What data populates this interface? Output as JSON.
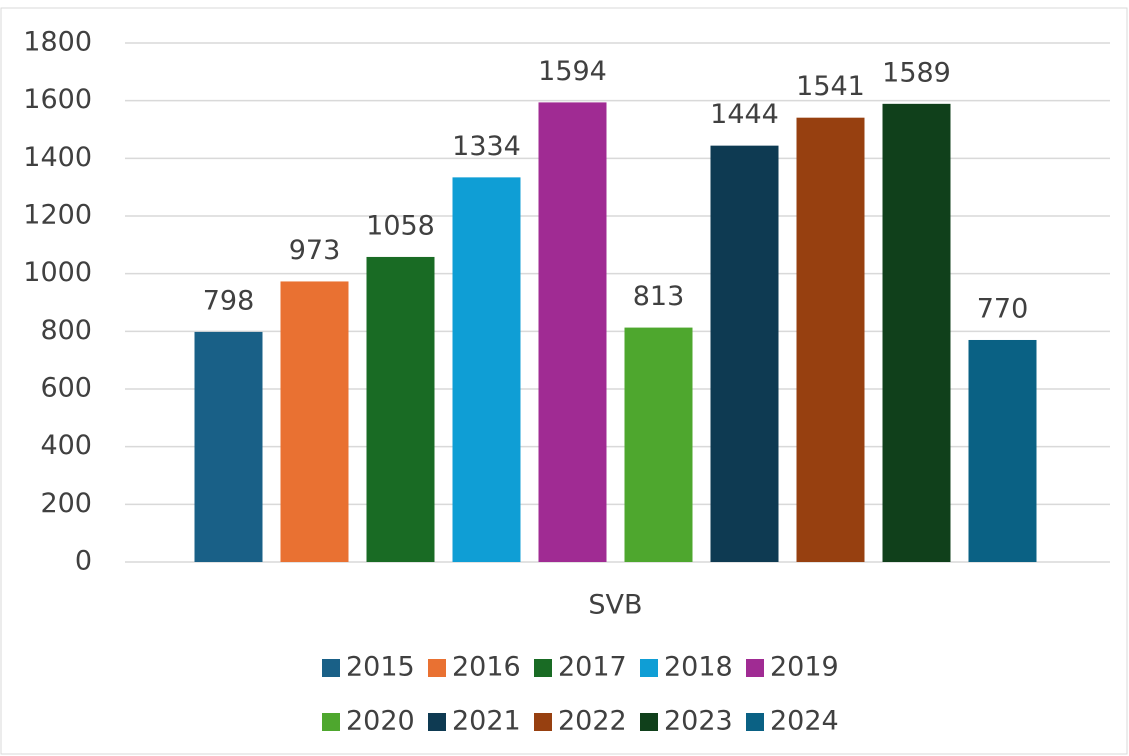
{
  "chart_data": {
    "type": "bar",
    "categories": [
      "SVB"
    ],
    "series": [
      {
        "name": "2015",
        "color": "#196087",
        "values": [
          798
        ]
      },
      {
        "name": "2016",
        "color": "#e97132",
        "values": [
          973
        ]
      },
      {
        "name": "2017",
        "color": "#196b24",
        "values": [
          1058
        ]
      },
      {
        "name": "2018",
        "color": "#0f9ed5",
        "values": [
          1334
        ]
      },
      {
        "name": "2019",
        "color": "#a02b93",
        "values": [
          1594
        ]
      },
      {
        "name": "2020",
        "color": "#4ea72e",
        "values": [
          813
        ]
      },
      {
        "name": "2021",
        "color": "#0e3a52",
        "values": [
          1444
        ]
      },
      {
        "name": "2022",
        "color": "#974010",
        "values": [
          1541
        ]
      },
      {
        "name": "2023",
        "color": "#10401b",
        "values": [
          1589
        ]
      },
      {
        "name": "2024",
        "color": "#0a6184",
        "values": [
          770
        ]
      }
    ],
    "ylim": [
      0,
      1800
    ],
    "yticks": [
      0,
      200,
      400,
      600,
      800,
      1000,
      1200,
      1400,
      1600,
      1800
    ],
    "grid": true,
    "legend": "bottom"
  }
}
